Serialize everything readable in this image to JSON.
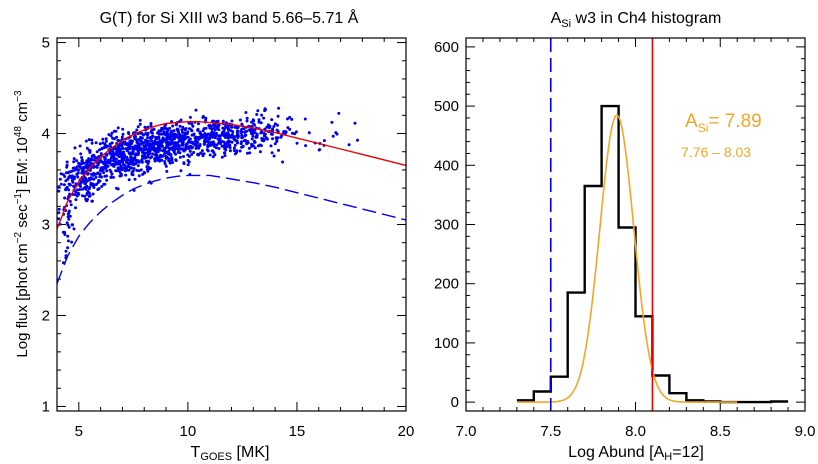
{
  "chart_data": [
    {
      "type": "scatter",
      "title": "G(T) for Si XIII w3 band 5.66–5.71 Å",
      "xlabel": {
        "main": "T",
        "sub": "GOES",
        "unit": " [MK]"
      },
      "ylabel": {
        "p1": "Log flux  [phot cm",
        "s1": "−2",
        "p2": " sec",
        "s2": "−1",
        "p3": "] EM: 10",
        "s3": "48",
        "p4": " cm",
        "s4": "−3"
      },
      "xlim": [
        4,
        20
      ],
      "ylim": [
        0.95,
        5.05
      ],
      "xticks": [
        5,
        10,
        15,
        20
      ],
      "yticks": [
        1,
        2,
        3,
        4,
        5
      ],
      "scatter": {
        "color": "#0000ee",
        "clusters": [
          {
            "x": 5.2,
            "y": 3.5,
            "sx": 0.55,
            "sy": 0.14,
            "n": 180
          },
          {
            "x": 6.8,
            "y": 3.72,
            "sx": 0.8,
            "sy": 0.12,
            "n": 360
          },
          {
            "x": 8.8,
            "y": 3.88,
            "sx": 0.95,
            "sy": 0.11,
            "n": 420
          },
          {
            "x": 11.3,
            "y": 3.97,
            "sx": 1.0,
            "sy": 0.1,
            "n": 300
          },
          {
            "x": 13.4,
            "y": 4.02,
            "sx": 0.7,
            "sy": 0.1,
            "n": 120
          },
          {
            "x": 4.4,
            "y": 3.05,
            "sx": 0.25,
            "sy": 0.2,
            "n": 40
          },
          {
            "x": 16.0,
            "y": 3.95,
            "sx": 1.2,
            "sy": 0.15,
            "n": 25
          }
        ]
      },
      "curves": [
        {
          "style": "solid",
          "color": "#ee0000",
          "x": [
            4.0,
            4.5,
            5.0,
            5.5,
            6.0,
            6.5,
            7.0,
            7.5,
            8.0,
            8.5,
            9.0,
            9.5,
            10.0,
            10.5,
            11.0,
            11.5,
            12.0,
            13.0,
            14.0,
            15.0,
            16.0,
            17.0,
            18.0,
            19.0,
            20.0
          ],
          "y": [
            2.95,
            3.26,
            3.47,
            3.62,
            3.74,
            3.84,
            3.92,
            3.99,
            4.04,
            4.08,
            4.11,
            4.12,
            4.13,
            4.13,
            4.12,
            4.11,
            4.1,
            4.06,
            4.01,
            3.95,
            3.89,
            3.83,
            3.77,
            3.71,
            3.65
          ]
        },
        {
          "style": "dashed",
          "color": "#0000ee",
          "x": [
            4.0,
            4.5,
            5.0,
            5.5,
            6.0,
            6.5,
            7.0,
            7.5,
            8.0,
            8.5,
            9.0,
            9.5,
            10.0,
            10.5,
            11.0,
            11.5,
            12.0,
            13.0,
            14.0,
            15.0,
            16.0,
            17.0,
            18.0,
            19.0,
            20.0
          ],
          "y": [
            2.35,
            2.66,
            2.87,
            3.02,
            3.14,
            3.24,
            3.32,
            3.39,
            3.44,
            3.48,
            3.51,
            3.53,
            3.54,
            3.54,
            3.54,
            3.52,
            3.5,
            3.46,
            3.41,
            3.35,
            3.29,
            3.23,
            3.17,
            3.11,
            3.05
          ]
        }
      ]
    },
    {
      "type": "bar",
      "title": {
        "main": "A",
        "sub": "Si",
        "rest": " w3 in Ch4 histogram"
      },
      "xlabel": {
        "main": "Log Abund [A",
        "sub": "H",
        "rest": "=12]"
      },
      "xlim": [
        7.0,
        9.0
      ],
      "ylim": [
        -15,
        615
      ],
      "xticks": [
        "7.0",
        "7.5",
        "8.0",
        "8.5",
        "9.0"
      ],
      "yticks": [
        0,
        100,
        200,
        300,
        400,
        500,
        600
      ],
      "bins": {
        "edges": [
          7.3,
          7.4,
          7.5,
          7.6,
          7.7,
          7.8,
          7.9,
          8.0,
          8.1,
          8.2,
          8.3,
          8.4,
          8.5,
          8.6,
          8.7,
          8.8,
          8.9
        ],
        "counts": [
          3,
          18,
          43,
          185,
          365,
          500,
          295,
          145,
          45,
          15,
          3,
          1,
          0,
          0,
          0,
          1
        ],
        "color": "#000000"
      },
      "gauss_fit": {
        "center": 7.89,
        "sigma": 0.1,
        "peak": 485,
        "color": "#f5a623"
      },
      "markers": [
        {
          "x": 7.5,
          "style": "dashed",
          "color": "#0000ee"
        },
        {
          "x": 8.1,
          "style": "solid",
          "color": "#ee0000"
        }
      ],
      "annotation": {
        "label": "A",
        "sub": "Si",
        "value": "= 7.89",
        "range": "7.76 –  8.03",
        "color": "#f5a623"
      }
    }
  ]
}
